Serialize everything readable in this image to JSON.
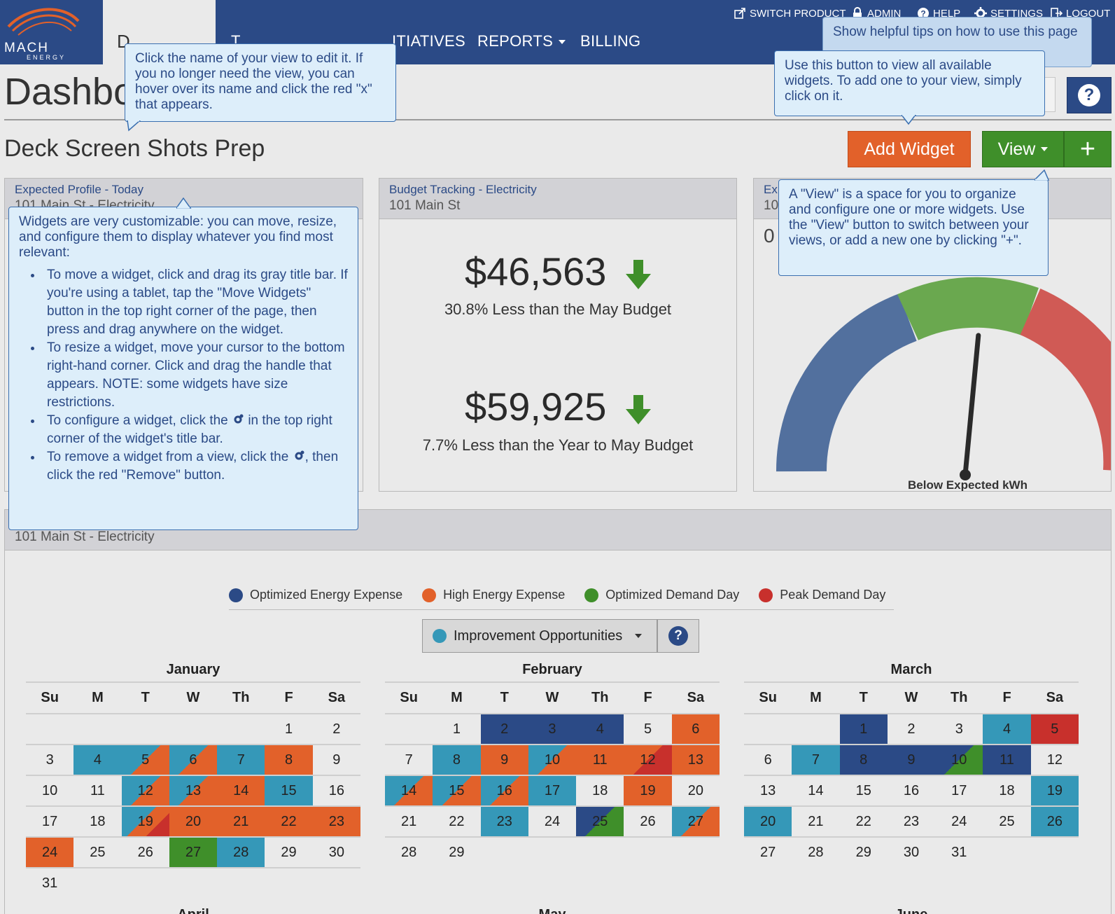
{
  "nav": {
    "logo_word": "MACH",
    "logo_sub": "ENERGY",
    "active_tab": "D",
    "items": [
      {
        "label": "D"
      },
      {
        "label": "T"
      },
      {
        "label": "ITIATIVES"
      },
      {
        "label": "REPORTS"
      },
      {
        "label": "BILLING"
      }
    ],
    "utility": [
      {
        "label": "SWITCH PRODUCT",
        "icon": "switch-product-icon"
      },
      {
        "label": "ADMIN",
        "icon": "lock-icon"
      },
      {
        "label": "HELP",
        "icon": "help-icon"
      },
      {
        "label": "SETTINGS",
        "icon": "gear-icon"
      },
      {
        "label": "LOGOUT",
        "icon": "logout-icon"
      }
    ]
  },
  "header": {
    "title": "Dashbo",
    "view_name": "Deck Screen Shots Prep",
    "add_widget_label": "Add Widget",
    "view_label": "View",
    "plus_label": "+",
    "help_label": "?"
  },
  "tooltips": {
    "edit_view": "Click the name of your view to edit it. If you no longer need the view, you can hover over its name and click the red \"x\" that appears.",
    "help_tip": "Show helpful tips on how to use this page",
    "add_widget_tip": "Use this button to view all available widgets. To add one to your view, simply click on it.",
    "view_tip": "A \"View\" is a space for you to organize and configure one or more widgets. Use the \"View\" button to switch between your views, or add a new one by clicking \"+\".",
    "widgets_intro": "Widgets are very customizable: you can move, resize, and configure them to display whatever you find most relevant:",
    "widgets_bullets": [
      "To move a widget, click and drag its gray title bar. If you're using a tablet, tap the \"Move Widgets\" button in the top right corner of the page, then press and drag anywhere on the widget.",
      "To resize a widget, move your cursor to the bottom right-hand corner. Click and drag the handle that appears. NOTE: some widgets have size restrictions.",
      "To configure a widget, click the",
      "To remove a widget from a view, click the"
    ],
    "configure_suffix": "in the top right corner of the widget's title bar.",
    "remove_suffix": ", then click the red \"Remove\" button."
  },
  "widgets": {
    "expected_profile": {
      "title": "Expected Profile - Today",
      "subtitle": "101 Main St - Electricity"
    },
    "budget": {
      "title": "Budget Tracking - Electricity",
      "subtitle": "101 Main St",
      "amount1": "$46,563",
      "compare1": "30.8% Less than the May Budget",
      "amount2": "$59,925",
      "compare2": "7.7% Less than the Year to May Budget"
    },
    "gauge": {
      "title": "Ex",
      "subtitle": "10",
      "value_prefix": "0",
      "legend": "Below Expected kWh",
      "needle_level": 0.53
    }
  },
  "calendar": {
    "subtitle": "101 Main St - Electricity",
    "legend": [
      {
        "label": "Optimized Energy Expense",
        "color": "#2b4a86"
      },
      {
        "label": "High Energy Expense",
        "color": "#e2612a"
      },
      {
        "label": "Optimized Demand Day",
        "color": "#3f8f2a"
      },
      {
        "label": "Peak Demand Day",
        "color": "#c8302c"
      }
    ],
    "select_label": "Improvement Opportunities",
    "select_color": "#3598b8",
    "weekdays": [
      "Su",
      "M",
      "T",
      "W",
      "Th",
      "F",
      "Sa"
    ],
    "months": [
      {
        "name": "January",
        "rows": [
          [
            {
              "d": ""
            },
            {
              "d": ""
            },
            {
              "d": ""
            },
            {
              "d": ""
            },
            {
              "d": ""
            },
            {
              "d": "1"
            },
            {
              "d": "2"
            }
          ],
          [
            {
              "d": "3"
            },
            {
              "d": "4",
              "c": "blue"
            },
            {
              "d": "5",
              "c": "blue-orange"
            },
            {
              "d": "6",
              "c": "blue-orange"
            },
            {
              "d": "7",
              "c": "blue"
            },
            {
              "d": "8",
              "c": "orange"
            },
            {
              "d": "9"
            }
          ],
          [
            {
              "d": "10"
            },
            {
              "d": "11"
            },
            {
              "d": "12",
              "c": "blue-orange"
            },
            {
              "d": "13",
              "c": "blue-orange"
            },
            {
              "d": "14",
              "c": "orange"
            },
            {
              "d": "15",
              "c": "blue"
            },
            {
              "d": "16"
            }
          ],
          [
            {
              "d": "17"
            },
            {
              "d": "18"
            },
            {
              "d": "19",
              "c": "blue-orange-red"
            },
            {
              "d": "20",
              "c": "orange"
            },
            {
              "d": "21",
              "c": "orange"
            },
            {
              "d": "22",
              "c": "orange"
            },
            {
              "d": "23",
              "c": "orange"
            }
          ],
          [
            {
              "d": "24",
              "c": "orange"
            },
            {
              "d": "25"
            },
            {
              "d": "26"
            },
            {
              "d": "27",
              "c": "green"
            },
            {
              "d": "28",
              "c": "blue"
            },
            {
              "d": "29"
            },
            {
              "d": "30"
            }
          ],
          [
            {
              "d": "31"
            },
            {
              "d": ""
            },
            {
              "d": ""
            },
            {
              "d": ""
            },
            {
              "d": ""
            },
            {
              "d": ""
            },
            {
              "d": ""
            }
          ]
        ]
      },
      {
        "name": "February",
        "rows": [
          [
            {
              "d": ""
            },
            {
              "d": "1"
            },
            {
              "d": "2",
              "c": "navy"
            },
            {
              "d": "3",
              "c": "navy"
            },
            {
              "d": "4",
              "c": "navy"
            },
            {
              "d": "5"
            },
            {
              "d": "6",
              "c": "orange"
            }
          ],
          [
            {
              "d": "7"
            },
            {
              "d": "8",
              "c": "blue"
            },
            {
              "d": "9",
              "c": "orange"
            },
            {
              "d": "10",
              "c": "blue-orange"
            },
            {
              "d": "11",
              "c": "orange"
            },
            {
              "d": "12",
              "c": "orange-red"
            },
            {
              "d": "13",
              "c": "orange"
            }
          ],
          [
            {
              "d": "14",
              "c": "blue-orange"
            },
            {
              "d": "15",
              "c": "blue-orange"
            },
            {
              "d": "16",
              "c": "blue-orange"
            },
            {
              "d": "17",
              "c": "blue"
            },
            {
              "d": "18"
            },
            {
              "d": "19",
              "c": "orange"
            },
            {
              "d": "20"
            }
          ],
          [
            {
              "d": "21"
            },
            {
              "d": "22"
            },
            {
              "d": "23",
              "c": "blue"
            },
            {
              "d": "24"
            },
            {
              "d": "25",
              "c": "navy-green"
            },
            {
              "d": "26"
            },
            {
              "d": "27",
              "c": "blue-orange"
            }
          ],
          [
            {
              "d": "28"
            },
            {
              "d": "29"
            },
            {
              "d": ""
            },
            {
              "d": ""
            },
            {
              "d": ""
            },
            {
              "d": ""
            },
            {
              "d": ""
            }
          ]
        ]
      },
      {
        "name": "March",
        "rows": [
          [
            {
              "d": ""
            },
            {
              "d": ""
            },
            {
              "d": "1",
              "c": "navy"
            },
            {
              "d": "2"
            },
            {
              "d": "3"
            },
            {
              "d": "4",
              "c": "blue"
            },
            {
              "d": "5",
              "c": "red"
            }
          ],
          [
            {
              "d": "6"
            },
            {
              "d": "7",
              "c": "blue"
            },
            {
              "d": "8",
              "c": "navy"
            },
            {
              "d": "9",
              "c": "navy"
            },
            {
              "d": "10",
              "c": "navy-green"
            },
            {
              "d": "11",
              "c": "navy"
            },
            {
              "d": "12"
            }
          ],
          [
            {
              "d": "13"
            },
            {
              "d": "14"
            },
            {
              "d": "15"
            },
            {
              "d": "16"
            },
            {
              "d": "17"
            },
            {
              "d": "18"
            },
            {
              "d": "19",
              "c": "blue"
            }
          ],
          [
            {
              "d": "20",
              "c": "blue"
            },
            {
              "d": "21"
            },
            {
              "d": "22"
            },
            {
              "d": "23"
            },
            {
              "d": "24"
            },
            {
              "d": "25"
            },
            {
              "d": "26",
              "c": "blue"
            }
          ],
          [
            {
              "d": "27"
            },
            {
              "d": "28"
            },
            {
              "d": "29"
            },
            {
              "d": "30"
            },
            {
              "d": "31"
            },
            {
              "d": ""
            },
            {
              "d": ""
            }
          ]
        ]
      }
    ],
    "next_months": [
      "April",
      "May",
      "June"
    ]
  }
}
